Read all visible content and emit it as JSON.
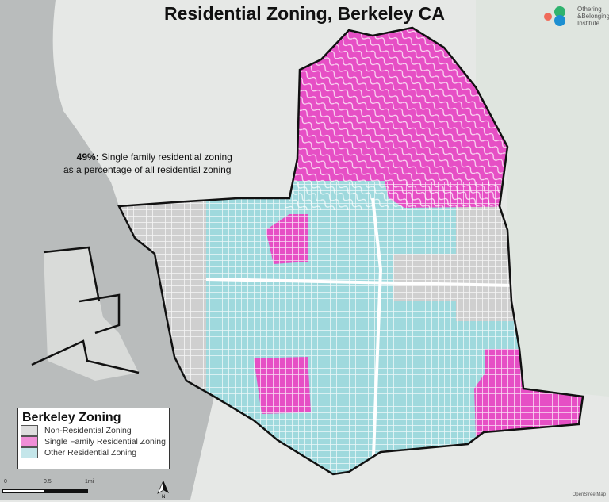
{
  "title": "Residential Zoning, Berkeley CA",
  "logo": {
    "line1": "Othering",
    "line2": "&Belonging",
    "line3": "Institute"
  },
  "stat": {
    "percent": "49%:",
    "line1": "Single family residential zoning",
    "line2": "as a percentage of all residential zoning"
  },
  "legend": {
    "title": "Berkeley Zoning",
    "items": [
      {
        "label": "Non-Residential Zoning",
        "color": "#dedede"
      },
      {
        "label": "Single Family Residential Zoning",
        "color": "#f08fd8"
      },
      {
        "label": "Other Residential Zoning",
        "color": "#c4e6ea"
      }
    ]
  },
  "scale": {
    "labels": [
      "0",
      "0.5",
      "1mi"
    ]
  },
  "north_label": "N",
  "credit": "OpenStreetMap",
  "colors": {
    "water": "#b9bcbc",
    "land": "#e6e8e6",
    "pink": "#e64fc5",
    "teal": "#9fd9dd",
    "gray": "#cfcfcf"
  }
}
